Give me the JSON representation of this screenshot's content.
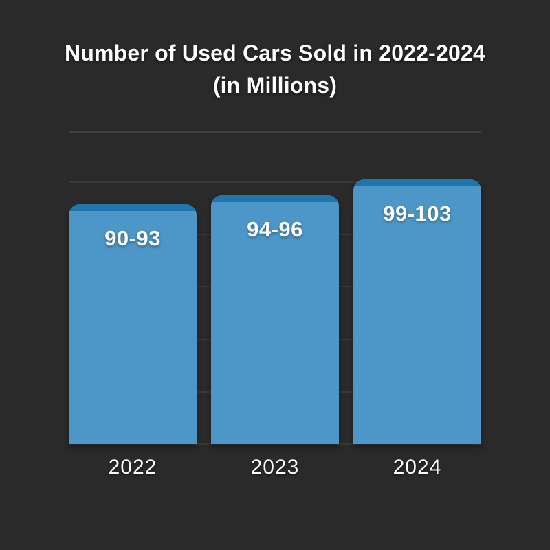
{
  "page": {
    "background_color": "#2b2a2a"
  },
  "title": {
    "line1": "Number of Used Cars Sold in 2022-2024",
    "line2": "(in Millions)"
  },
  "chart_data": {
    "type": "bar",
    "title": "Number of Used Cars Sold in 2022-2024",
    "subtitle": "(in Millions)",
    "unit": "millions of used cars",
    "categories": [
      "2022",
      "2023",
      "2024"
    ],
    "value_labels": [
      "90-93",
      "94-96",
      "99-103"
    ],
    "series": [
      {
        "name": "Used cars sold",
        "value_ranges": [
          [
            90,
            93
          ],
          [
            94,
            96
          ],
          [
            99,
            103
          ]
        ],
        "values_mid": [
          91.5,
          95,
          101
        ]
      }
    ],
    "xlabel": "",
    "ylabel": "",
    "ylim": [
      0,
      110
    ],
    "gridline_step_units": 20,
    "grid": true,
    "legend": "none",
    "axis_tick_labels_visible": false,
    "colors": {
      "bar_fill": "#4d97c8",
      "bar_cap": "#1e76ad",
      "background": "#2b2a2a",
      "gridline": "#373737",
      "divider": "#3d3d3d",
      "title_text": "#ffffff",
      "value_text": "#ffffff",
      "category_text": "#fafafa"
    }
  }
}
